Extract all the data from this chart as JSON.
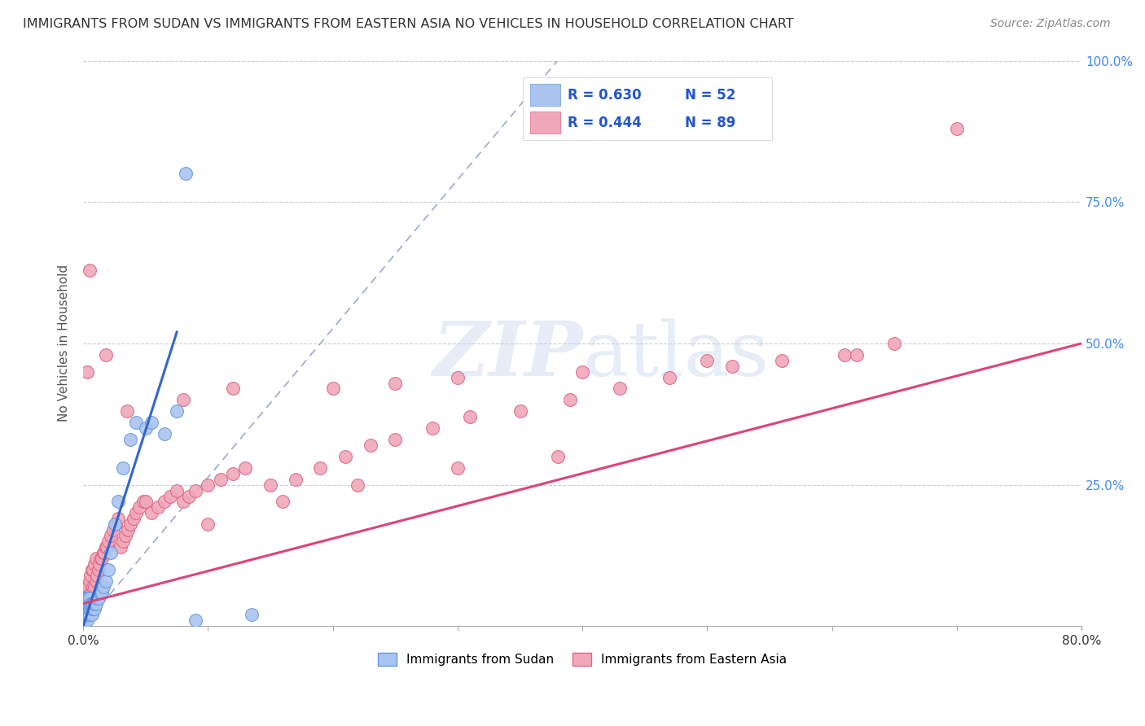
{
  "title": "IMMIGRANTS FROM SUDAN VS IMMIGRANTS FROM EASTERN ASIA NO VEHICLES IN HOUSEHOLD CORRELATION CHART",
  "source": "Source: ZipAtlas.com",
  "ylabel": "No Vehicles in Household",
  "xlim": [
    0,
    0.8
  ],
  "ylim": [
    0,
    1.0
  ],
  "color_sudan": "#aac4f0",
  "color_sudan_edge": "#6699dd",
  "color_eastern_asia": "#f0a8b8",
  "color_eastern_asia_edge": "#dd6688",
  "color_sudan_line": "#3366cc",
  "color_eastern_asia_line": "#dd4477",
  "color_dashed": "#99aacc",
  "sudan_line_x0": 0.0,
  "sudan_line_y0": 0.0,
  "sudan_line_x1": 0.075,
  "sudan_line_y1": 0.52,
  "ea_line_x0": 0.0,
  "ea_line_y0": 0.04,
  "ea_line_x1": 0.8,
  "ea_line_y1": 0.5,
  "sudan_x": [
    0.001,
    0.001,
    0.001,
    0.001,
    0.002,
    0.002,
    0.002,
    0.002,
    0.003,
    0.003,
    0.003,
    0.003,
    0.003,
    0.004,
    0.004,
    0.004,
    0.004,
    0.005,
    0.005,
    0.005,
    0.005,
    0.006,
    0.006,
    0.007,
    0.007,
    0.007,
    0.008,
    0.008,
    0.009,
    0.009,
    0.01,
    0.011,
    0.012,
    0.013,
    0.014,
    0.015,
    0.016,
    0.018,
    0.02,
    0.022,
    0.025,
    0.028,
    0.032,
    0.038,
    0.042,
    0.05,
    0.055,
    0.065,
    0.075,
    0.082,
    0.09,
    0.135
  ],
  "sudan_y": [
    0.01,
    0.02,
    0.03,
    0.04,
    0.02,
    0.03,
    0.04,
    0.05,
    0.01,
    0.02,
    0.03,
    0.04,
    0.05,
    0.02,
    0.03,
    0.04,
    0.05,
    0.02,
    0.03,
    0.04,
    0.05,
    0.03,
    0.04,
    0.02,
    0.03,
    0.04,
    0.03,
    0.04,
    0.03,
    0.04,
    0.04,
    0.05,
    0.05,
    0.06,
    0.06,
    0.06,
    0.07,
    0.08,
    0.1,
    0.13,
    0.18,
    0.22,
    0.28,
    0.33,
    0.36,
    0.35,
    0.36,
    0.34,
    0.38,
    0.8,
    0.01,
    0.02
  ],
  "eastern_asia_x": [
    0.001,
    0.002,
    0.002,
    0.003,
    0.003,
    0.004,
    0.004,
    0.005,
    0.005,
    0.006,
    0.006,
    0.007,
    0.007,
    0.008,
    0.008,
    0.009,
    0.009,
    0.01,
    0.01,
    0.011,
    0.012,
    0.013,
    0.014,
    0.015,
    0.016,
    0.017,
    0.018,
    0.019,
    0.02,
    0.022,
    0.024,
    0.026,
    0.028,
    0.03,
    0.032,
    0.034,
    0.036,
    0.038,
    0.04,
    0.042,
    0.045,
    0.048,
    0.05,
    0.055,
    0.06,
    0.065,
    0.07,
    0.075,
    0.08,
    0.085,
    0.09,
    0.1,
    0.11,
    0.12,
    0.13,
    0.15,
    0.17,
    0.19,
    0.21,
    0.23,
    0.25,
    0.28,
    0.31,
    0.35,
    0.39,
    0.43,
    0.47,
    0.52,
    0.56,
    0.61,
    0.65,
    0.7,
    0.003,
    0.005,
    0.018,
    0.035,
    0.08,
    0.12,
    0.2,
    0.25,
    0.3,
    0.4,
    0.5,
    0.62,
    0.1,
    0.16,
    0.22,
    0.3,
    0.38
  ],
  "eastern_asia_y": [
    0.02,
    0.03,
    0.05,
    0.04,
    0.06,
    0.04,
    0.07,
    0.05,
    0.08,
    0.06,
    0.09,
    0.06,
    0.1,
    0.07,
    0.1,
    0.07,
    0.11,
    0.08,
    0.12,
    0.09,
    0.1,
    0.11,
    0.12,
    0.12,
    0.13,
    0.13,
    0.14,
    0.14,
    0.15,
    0.16,
    0.17,
    0.18,
    0.19,
    0.14,
    0.15,
    0.16,
    0.17,
    0.18,
    0.19,
    0.2,
    0.21,
    0.22,
    0.22,
    0.2,
    0.21,
    0.22,
    0.23,
    0.24,
    0.22,
    0.23,
    0.24,
    0.25,
    0.26,
    0.27,
    0.28,
    0.25,
    0.26,
    0.28,
    0.3,
    0.32,
    0.33,
    0.35,
    0.37,
    0.38,
    0.4,
    0.42,
    0.44,
    0.46,
    0.47,
    0.48,
    0.5,
    0.88,
    0.45,
    0.63,
    0.48,
    0.38,
    0.4,
    0.42,
    0.42,
    0.43,
    0.44,
    0.45,
    0.47,
    0.48,
    0.18,
    0.22,
    0.25,
    0.28,
    0.3
  ]
}
